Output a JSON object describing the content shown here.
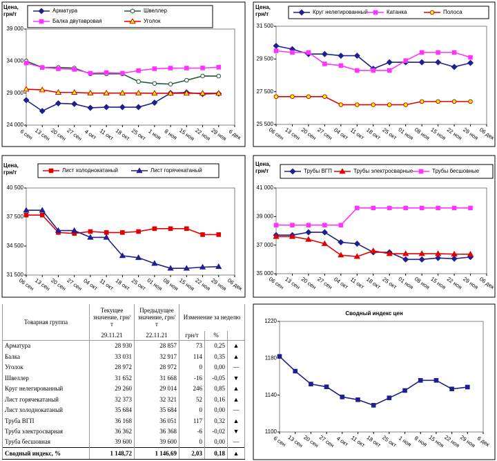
{
  "chart_data": [
    {
      "type": "line",
      "y_label": "Цена, грн/т",
      "categories": [
        "6 сен",
        "13 сен",
        "20 сен",
        "27 сен",
        "4 окт",
        "11 окт",
        "18 окт",
        "25 окт",
        "1 ноя",
        "8 ноя",
        "15 ноя",
        "22 ноя",
        "29 ноя",
        "6 дек"
      ],
      "ylim": [
        24000,
        39000
      ],
      "yticks": [
        {
          "value": 24000,
          "label": "24 000"
        },
        {
          "value": 29000,
          "label": "29 000"
        },
        {
          "value": 34000,
          "label": "34 000"
        },
        {
          "value": 39000,
          "label": "39 000"
        }
      ],
      "grid": false,
      "series": [
        {
          "name": "Арматура",
          "color": "#1f1f8f",
          "marker": "diamond",
          "marker_fill": "#1f1f8f",
          "values": [
            27900,
            26200,
            27400,
            27300,
            26700,
            26800,
            26800,
            26800,
            27500,
            29000,
            29100,
            28857,
            28930,
            null
          ]
        },
        {
          "name": "Швеллер",
          "color": "#1e5a32",
          "marker": "circle",
          "marker_fill": "#ffffff",
          "values": [
            34000,
            33000,
            33000,
            32900,
            32000,
            32000,
            32000,
            30800,
            30500,
            30400,
            31000,
            31668,
            31652,
            null
          ]
        },
        {
          "name": "Балка двутавровая",
          "color": "#ff33ff",
          "marker": "square",
          "marker_fill": "#ff33ff",
          "values": [
            33700,
            33000,
            32800,
            32700,
            32100,
            32200,
            32100,
            32500,
            32800,
            32900,
            32900,
            32917,
            33031,
            null
          ]
        },
        {
          "name": "Уголок",
          "color": "#e00000",
          "marker": "triangle",
          "marker_fill": "#ffff00",
          "values": [
            29600,
            29500,
            29100,
            29100,
            29000,
            29000,
            29000,
            29000,
            28972,
            28972,
            28972,
            28972,
            28972,
            null
          ]
        }
      ]
    },
    {
      "type": "line",
      "y_label": "Цена, грн/т",
      "categories": [
        "06 сен",
        "13 сен",
        "20 сен",
        "27 сен",
        "04 окт",
        "11 окт",
        "18 окт",
        "25 окт",
        "01 ноя",
        "08 ноя",
        "15 ноя",
        "22 ноя",
        "29 ноя",
        "06 дек"
      ],
      "ylim": [
        25500,
        31500
      ],
      "yticks": [
        {
          "value": 25500,
          "label": "25 500"
        },
        {
          "value": 27500,
          "label": "27 500"
        },
        {
          "value": 29500,
          "label": "29 500"
        },
        {
          "value": 31500,
          "label": "31 500"
        }
      ],
      "grid": false,
      "series": [
        {
          "name": "Круг нелегированный",
          "color": "#1f1f8f",
          "marker": "diamond",
          "marker_fill": "#1f1f8f",
          "values": [
            30300,
            30100,
            29800,
            29800,
            29700,
            29700,
            28900,
            29300,
            29300,
            29300,
            29300,
            29014,
            29260,
            null
          ]
        },
        {
          "name": "Катанка",
          "color": "#ff33ff",
          "marker": "square",
          "marker_fill": "#ff33ff",
          "values": [
            30000,
            29900,
            29900,
            29200,
            29100,
            28800,
            28800,
            28800,
            29400,
            29900,
            29900,
            29900,
            29600,
            null
          ]
        },
        {
          "name": "Полоса",
          "color": "#e00000",
          "marker": "circle",
          "marker_fill": "#ffff00",
          "values": [
            27200,
            27200,
            27200,
            27200,
            26700,
            26700,
            26700,
            26700,
            26700,
            26900,
            26900,
            26900,
            26900,
            null
          ]
        }
      ]
    },
    {
      "type": "line",
      "y_label": "Цена, грн/т",
      "categories": [
        "06 сен",
        "13 сен",
        "20 сен",
        "27 сен",
        "04 окт",
        "11 окт",
        "18 окт",
        "25 окт",
        "01 ноя",
        "08 ноя",
        "15 ноя",
        "22 ноя",
        "29 ноя",
        "06 дек"
      ],
      "ylim": [
        31500,
        40500
      ],
      "yticks": [
        {
          "value": 31500,
          "label": "31 500"
        },
        {
          "value": 34500,
          "label": "34 500"
        },
        {
          "value": 37500,
          "label": "37 500"
        },
        {
          "value": 40500,
          "label": "40 500"
        }
      ],
      "grid": false,
      "series": [
        {
          "name": "Лист холоднокатаный",
          "color": "#e00000",
          "marker": "square",
          "marker_fill": "#e00000",
          "values": [
            37700,
            37700,
            35900,
            35800,
            36000,
            35900,
            35900,
            36000,
            36300,
            36300,
            36300,
            35684,
            35684,
            null
          ]
        },
        {
          "name": "Лист горячекатаный",
          "color": "#1f1f8f",
          "marker": "triangle",
          "marker_fill": "#1f1f8f",
          "values": [
            38200,
            38200,
            36100,
            36100,
            35400,
            35400,
            33500,
            33300,
            32700,
            32200,
            32200,
            32321,
            32373,
            null
          ]
        }
      ]
    },
    {
      "type": "line",
      "y_label": "Цена, грн/т",
      "categories": [
        "06 сен",
        "13 сен",
        "20 сен",
        "27 сен",
        "04 окт",
        "11 окт",
        "18 окт",
        "25 окт",
        "01 ноя",
        "08 ноя",
        "15 ноя",
        "22 ноя",
        "29 ноя",
        "06 дек"
      ],
      "ylim": [
        35000,
        41000
      ],
      "yticks": [
        {
          "value": 35000,
          "label": "35 000"
        },
        {
          "value": 37000,
          "label": "37 000"
        },
        {
          "value": 39000,
          "label": "39 000"
        },
        {
          "value": 41000,
          "label": "41 000"
        }
      ],
      "grid": false,
      "series": [
        {
          "name": "Трубы ВГП",
          "color": "#1f1f8f",
          "marker": "diamond",
          "marker_fill": "#1f1f8f",
          "values": [
            37700,
            37700,
            37900,
            37900,
            37200,
            37100,
            36500,
            36500,
            36000,
            36000,
            36100,
            36051,
            36168,
            null
          ]
        },
        {
          "name": "Трубы электросварные",
          "color": "#e00000",
          "marker": "triangle",
          "marker_fill": "#e00000",
          "values": [
            37600,
            37600,
            37400,
            37100,
            36300,
            36200,
            36600,
            36400,
            36400,
            36400,
            36400,
            36368,
            36362,
            null
          ]
        },
        {
          "name": "Трубы бесшовные",
          "color": "#ff33ff",
          "marker": "square",
          "marker_fill": "#ff33ff",
          "values": [
            38400,
            38400,
            38400,
            38400,
            38400,
            39600,
            39600,
            39600,
            39600,
            39600,
            39600,
            39600,
            39600,
            null
          ]
        }
      ]
    },
    {
      "type": "line",
      "title": "Сводный индекс цен",
      "categories": [
        "6 сен",
        "13 сен",
        "20 сен",
        "27 сен",
        "4 окт",
        "11 окт",
        "18 окт",
        "25 окт",
        "1 ноя",
        "8 ноя",
        "15 ноя",
        "22 ноя",
        "29 ноя",
        "6 дек"
      ],
      "ylim": [
        1100,
        1220
      ],
      "yticks": [
        1100,
        1140,
        1180,
        1220
      ],
      "grid": false,
      "series": [
        {
          "color": "#1f1f8f",
          "marker": "square",
          "marker_fill": "#1f1f8f",
          "values": [
            1182,
            1166,
            1152,
            1149,
            1138,
            1135,
            1129,
            1137,
            1145,
            1156,
            1156,
            1146.69,
            1148.72,
            null
          ]
        }
      ]
    }
  ],
  "table": {
    "header": [
      "Товарная группа",
      "Текущее значение, грн/т",
      "Предыдущее значение, грн/т",
      "Изменение за неделю"
    ],
    "dates": [
      "29.11.21",
      "22.11.21"
    ],
    "units": [
      "грн/т",
      "%"
    ],
    "rows": [
      [
        "Арматура",
        "28 930",
        "28 857",
        "73",
        "0,25",
        "▲"
      ],
      [
        "Балка",
        "33 031",
        "32 917",
        "114",
        "0,35",
        "▲"
      ],
      [
        "Уголок",
        "28 972",
        "28 972",
        "0",
        "0,00",
        "—"
      ],
      [
        "Швеллер",
        "31 652",
        "31 668",
        "-16",
        "-0,05",
        "▼"
      ],
      [
        "Круг нелегированный",
        "29 260",
        "29 014",
        "246",
        "0,85",
        "▲"
      ],
      [
        "Лист горячекатаный",
        "32 373",
        "32 321",
        "52",
        "0,16",
        "▲"
      ],
      [
        "Лист холоднокатаный",
        "35 684",
        "35 684",
        "0",
        "0,00",
        "—"
      ],
      [
        "Труба ВГП",
        "36 168",
        "36 051",
        "117",
        "0,32",
        "▲"
      ],
      [
        "Труба электросварная",
        "36 362",
        "36 368",
        "-6",
        "-0,02",
        "▼"
      ],
      [
        "Труба бесшовная",
        "39 600",
        "39 600",
        "0",
        "0,00",
        "—"
      ],
      [
        "Сводный индекс, %",
        "1 148,72",
        "1 146,69",
        "2,03",
        "0,18",
        "▲"
      ]
    ]
  }
}
